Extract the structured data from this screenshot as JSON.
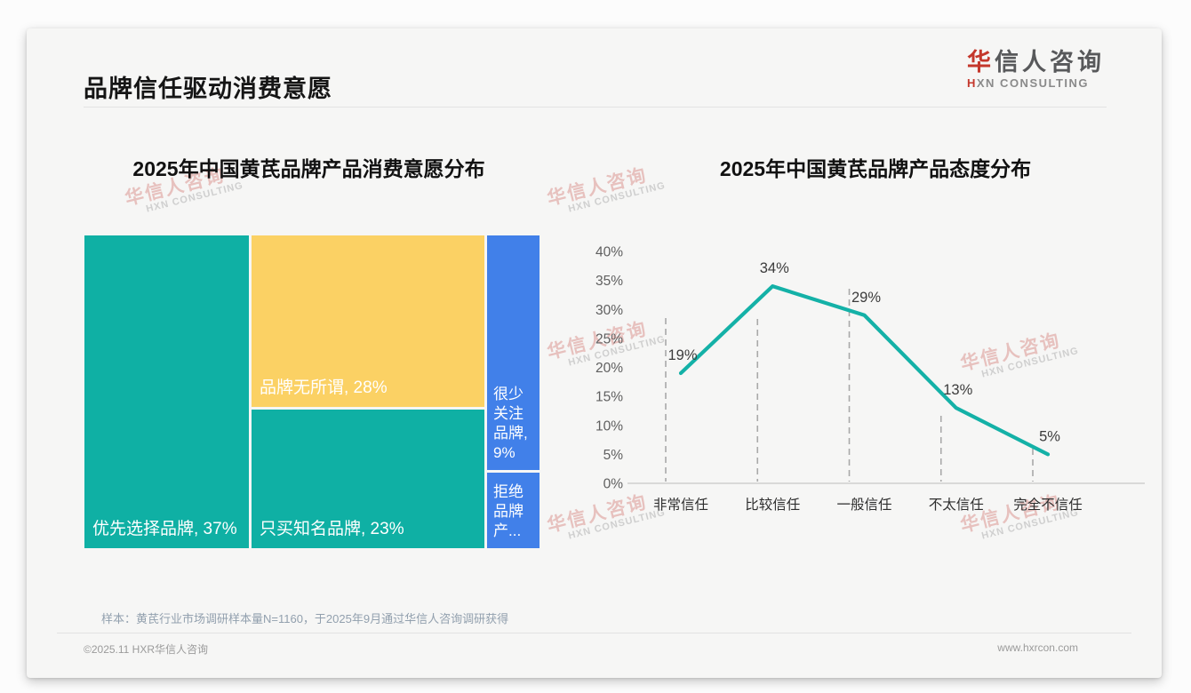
{
  "header": {
    "title": "品牌信任驱动消费意愿"
  },
  "logo": {
    "cn_accent": "华",
    "cn_rest": "信人咨询",
    "en_accent": "H",
    "en_rest": "XN CONSULTING",
    "accent_color": "#c4372b"
  },
  "watermark": {
    "cn": "华信人咨询",
    "en": "HXN CONSULTING"
  },
  "chart_data": [
    {
      "type": "treemap",
      "title": "2025年中国黄芪品牌产品消费意愿分布",
      "items": [
        {
          "name": "优先选择品牌",
          "display_label": "优先选择品牌, 37%",
          "value": 37,
          "color": "#0fb0a4"
        },
        {
          "name": "品牌无所谓",
          "display_label": "品牌无所谓, 28%",
          "value": 28,
          "color": "#fbd164"
        },
        {
          "name": "只买知名品牌",
          "display_label": "只买知名品牌, 23%",
          "value": 23,
          "color": "#0fb0a4"
        },
        {
          "name": "很少关注品牌",
          "display_label": "很少关注品牌, 9%",
          "value": 9,
          "color": "#4180e9"
        },
        {
          "name": "拒绝品牌产品",
          "display_label": "拒绝品牌产...",
          "value": 3,
          "color": "#4180e9"
        }
      ]
    },
    {
      "type": "line",
      "title": "2025年中国黄芪品牌产品态度分布",
      "categories": [
        "非常信任",
        "比较信任",
        "一般信任",
        "不太信任",
        "完全不信任"
      ],
      "values": [
        19,
        34,
        29,
        13,
        5
      ],
      "point_labels": [
        "19%",
        "34%",
        "29%",
        "13%",
        "5%"
      ],
      "ylim": [
        0,
        40
      ],
      "ytick_step": 5,
      "ytick_labels": [
        "0%",
        "5%",
        "10%",
        "15%",
        "20%",
        "25%",
        "30%",
        "35%",
        "40%"
      ],
      "line_color": "#14b1a7",
      "grid": "vertical-dashed",
      "legend": "none"
    }
  ],
  "footer": {
    "sample_note": "样本：黄芪行业市场调研样本量N=1160，于2025年9月通过华信人咨询调研获得",
    "copyright": "©2025.11 HXR华信人咨询",
    "website": "www.hxrcon.com"
  }
}
